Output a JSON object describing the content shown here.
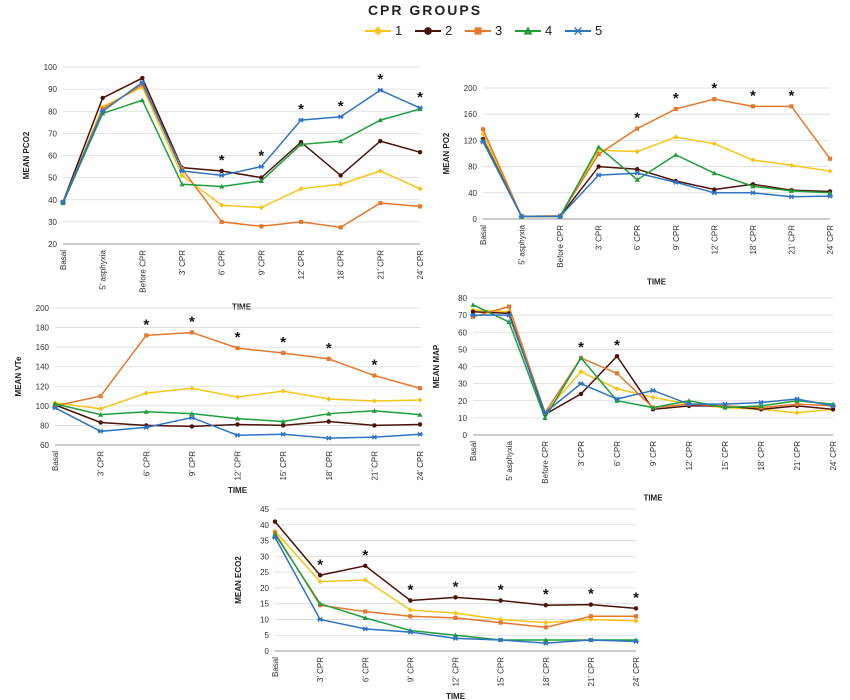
{
  "legend": {
    "title": "CPR GROUPS",
    "items": [
      {
        "label": "1",
        "color": "#f5c518",
        "marker": "diamond"
      },
      {
        "label": "2",
        "color": "#4a1208",
        "marker": "circle"
      },
      {
        "label": "3",
        "color": "#e6782e",
        "marker": "square"
      },
      {
        "label": "4",
        "color": "#1f9e3a",
        "marker": "triangle"
      },
      {
        "label": "5",
        "color": "#2f74c0",
        "marker": "star"
      }
    ]
  },
  "chart_data": [
    {
      "type": "line",
      "xlabel": "TIME",
      "ylabel": "MEAN PCO2",
      "ylim": [
        20,
        100
      ],
      "yticks": [
        20,
        30,
        40,
        50,
        60,
        70,
        80,
        90,
        100
      ],
      "categories": [
        "Basal",
        "5' asphyxia",
        "Before CPR",
        "3' CPR",
        "6' CPR",
        "9' CPR",
        "12' CPR",
        "18' CPR",
        "21' CPR",
        "24' CPR"
      ],
      "grid": true,
      "asterisks": [
        "6' CPR",
        "9' CPR",
        "12' CPR",
        "18' CPR",
        "21' CPR",
        "24' CPR"
      ],
      "series": [
        {
          "name": "1",
          "values": [
            38.5,
            82,
            91,
            51,
            37.5,
            36.5,
            45,
            47,
            53,
            45
          ]
        },
        {
          "name": "2",
          "values": [
            39,
            86,
            95,
            54.5,
            53,
            50,
            66,
            51,
            66.5,
            61.5
          ]
        },
        {
          "name": "3",
          "values": [
            39,
            81,
            92,
            54,
            30,
            28,
            30,
            27.5,
            38.5,
            37
          ]
        },
        {
          "name": "4",
          "values": [
            38.5,
            79,
            85,
            47,
            46,
            48.5,
            65,
            66.5,
            76,
            81
          ]
        },
        {
          "name": "5",
          "values": [
            39,
            80,
            93,
            53,
            51,
            55,
            76,
            77.5,
            89.5,
            81.5
          ]
        }
      ]
    },
    {
      "type": "line",
      "xlabel": "TIME",
      "ylabel": "MEAN PO2",
      "ylim": [
        0,
        200
      ],
      "yticks": [
        0,
        40,
        80,
        120,
        160,
        200
      ],
      "categories": [
        "Basal",
        "5' asphyxia",
        "Before CPR",
        "3' CPR",
        "6' CPR",
        "9' CPR",
        "12' CPR",
        "18' CPR",
        "21' CPR",
        "24' CPR"
      ],
      "grid": true,
      "asterisks": [
        "6' CPR",
        "9' CPR",
        "12' CPR",
        "18' CPR",
        "21' CPR"
      ],
      "series": [
        {
          "name": "1",
          "values": [
            130,
            4,
            4,
            105,
            103,
            125,
            115,
            90,
            82,
            73
          ]
        },
        {
          "name": "2",
          "values": [
            122,
            4,
            4,
            80,
            76,
            58,
            45,
            53,
            44,
            42
          ]
        },
        {
          "name": "3",
          "values": [
            137,
            4,
            5,
            99,
            138,
            168,
            183,
            172,
            172,
            92
          ]
        },
        {
          "name": "4",
          "values": [
            120,
            4,
            4,
            110,
            60,
            98,
            70,
            50,
            43,
            40
          ]
        },
        {
          "name": "5",
          "values": [
            118,
            4,
            4,
            67,
            70,
            56,
            40,
            40,
            34,
            35
          ]
        }
      ]
    },
    {
      "type": "line",
      "xlabel": "TIME",
      "ylabel": "MEAN VTe",
      "ylim": [
        60,
        200
      ],
      "yticks": [
        60,
        80,
        100,
        120,
        140,
        160,
        180,
        200
      ],
      "categories": [
        "Basal",
        "3' CPR",
        "6' CPR",
        "9' CPR",
        "12' CPR",
        "15' CPR",
        "18' CPR",
        "21' CPR",
        "24' CPR"
      ],
      "grid": true,
      "asterisks": [
        "6' CPR",
        "9' CPR",
        "12' CPR",
        "15' CPR",
        "18' CPR",
        "21' CPR"
      ],
      "series": [
        {
          "name": "1",
          "values": [
            103,
            97,
            113,
            118,
            109,
            115,
            107,
            105,
            106
          ]
        },
        {
          "name": "2",
          "values": [
            101,
            83,
            80,
            79,
            81,
            80,
            84,
            80,
            81
          ]
        },
        {
          "name": "3",
          "values": [
            100,
            110,
            172,
            175,
            159,
            154,
            148,
            131,
            118
          ]
        },
        {
          "name": "4",
          "values": [
            102,
            91,
            94,
            92,
            87,
            84,
            92,
            95,
            91
          ]
        },
        {
          "name": "5",
          "values": [
            98,
            74,
            78,
            88,
            70,
            71,
            67,
            68,
            71
          ]
        }
      ]
    },
    {
      "type": "line",
      "xlabel": "TIME",
      "ylabel": "MEAN MAP",
      "ylim": [
        0,
        80
      ],
      "yticks": [
        0,
        10,
        20,
        30,
        40,
        50,
        60,
        70,
        80
      ],
      "categories": [
        "Basal",
        "5' asphyxia",
        "Before CPR",
        "3' CPR",
        "6' CPR",
        "9' CPR",
        "12' CPR",
        "15' CPR",
        "18' CPR",
        "21' CPR",
        "24' CPR"
      ],
      "grid": true,
      "asterisks": [
        "3' CPR",
        "6' CPR"
      ],
      "series": [
        {
          "name": "1",
          "values": [
            73,
            72,
            13,
            37,
            27,
            22,
            18,
            16,
            15,
            13,
            15
          ]
        },
        {
          "name": "2",
          "values": [
            72,
            71,
            12,
            24,
            46,
            15,
            17,
            17,
            15,
            17,
            15
          ]
        },
        {
          "name": "3",
          "values": [
            69,
            75,
            13,
            45,
            36,
            16,
            18,
            17,
            16,
            18,
            17
          ]
        },
        {
          "name": "4",
          "values": [
            76,
            66,
            10,
            45,
            20,
            16,
            20,
            16,
            17,
            20,
            18
          ]
        },
        {
          "name": "5",
          "values": [
            70,
            70,
            13,
            30,
            21,
            26,
            18,
            18,
            19,
            21,
            17
          ]
        }
      ]
    },
    {
      "type": "line",
      "xlabel": "TIME",
      "ylabel": "MEAN ECO2",
      "ylim": [
        0,
        45
      ],
      "yticks": [
        0,
        5,
        10,
        15,
        20,
        25,
        30,
        35,
        40,
        45
      ],
      "categories": [
        "Basal",
        "3' CPR",
        "6' CPR",
        "9' CPR",
        "12' CPR",
        "15' CPR",
        "18' CPR",
        "21' CPR",
        "24' CPR"
      ],
      "grid": true,
      "asterisks": [
        "3' CPR",
        "6' CPR",
        "9' CPR",
        "12' CPR",
        "15' CPR",
        "18' CPR",
        "21' CPR",
        "24' CPR"
      ],
      "series": [
        {
          "name": "1",
          "values": [
            38,
            22,
            22.5,
            13,
            12,
            10,
            9,
            10,
            9.5
          ]
        },
        {
          "name": "2",
          "values": [
            41,
            24,
            27,
            16,
            17,
            16,
            14.5,
            14.7,
            13.5
          ]
        },
        {
          "name": "3",
          "values": [
            37.5,
            14.5,
            12.5,
            11,
            10.5,
            9,
            7.5,
            11,
            11
          ]
        },
        {
          "name": "4",
          "values": [
            37,
            15,
            10.5,
            6.5,
            5,
            3.5,
            3.5,
            3.5,
            3.5
          ]
        },
        {
          "name": "5",
          "values": [
            36,
            10,
            7,
            6,
            4,
            3.5,
            2.5,
            3.5,
            3
          ]
        }
      ]
    }
  ]
}
